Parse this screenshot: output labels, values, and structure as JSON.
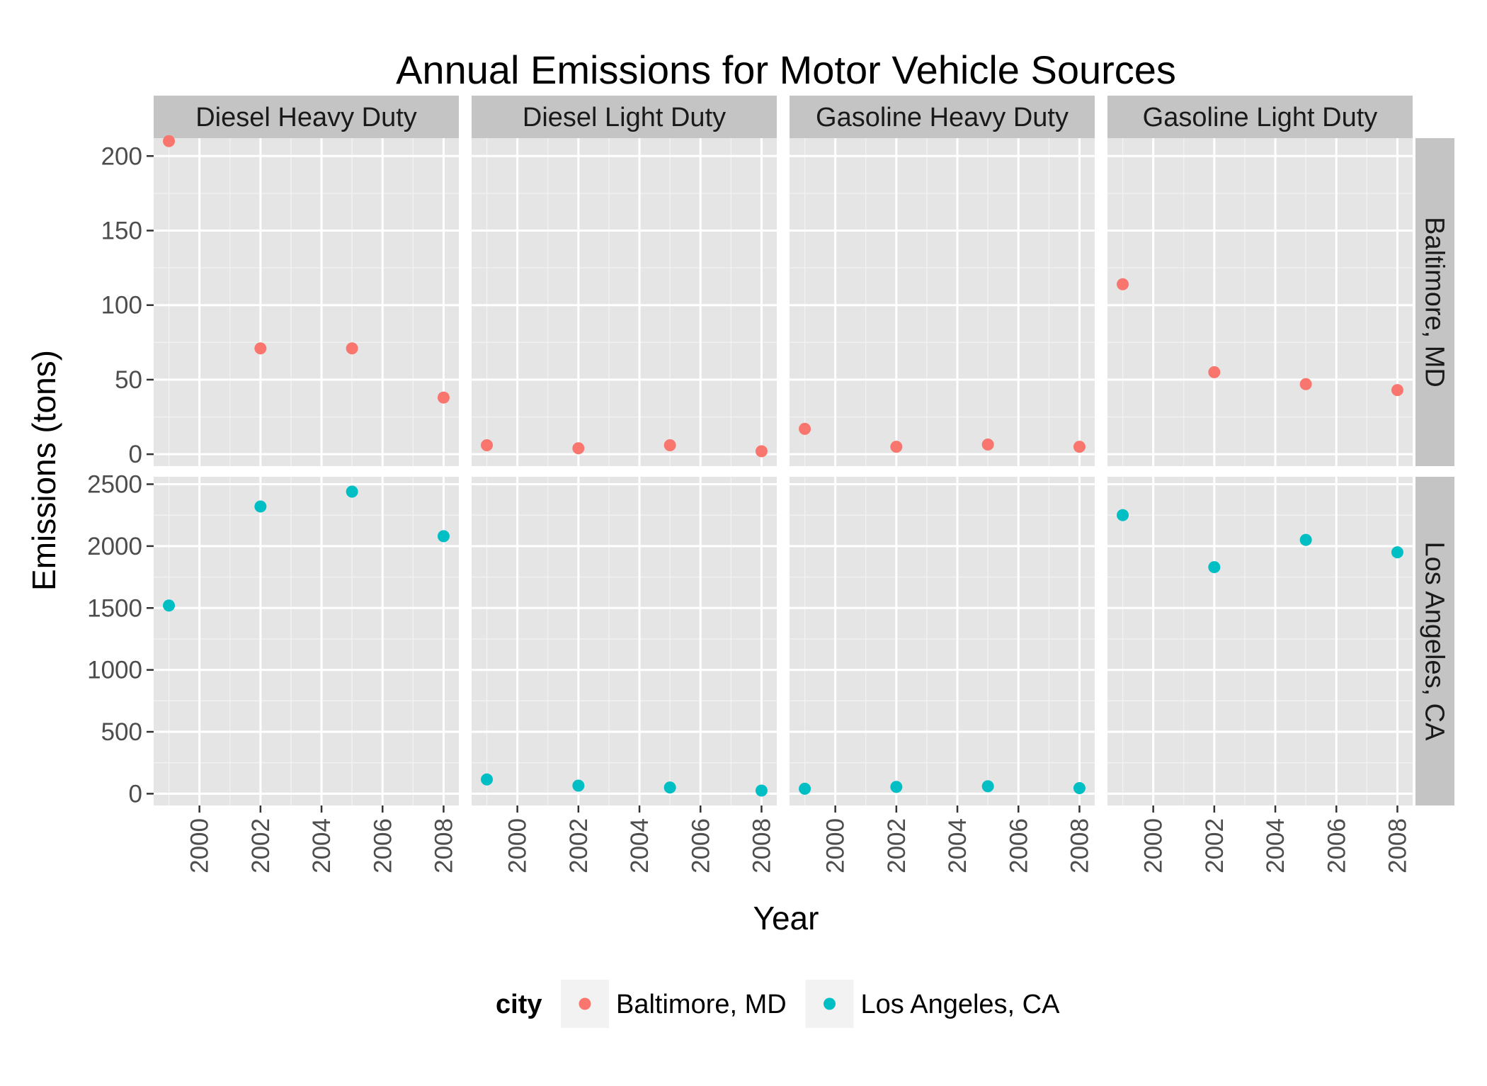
{
  "chart_data": {
    "type": "scatter",
    "title": "Annual Emissions for Motor Vehicle Sources",
    "xlabel": "Year",
    "ylabel": "Emissions (tons)",
    "x_ticks": [
      2000,
      2002,
      2004,
      2006,
      2008
    ],
    "xlim": [
      1998.5,
      2008.5
    ],
    "facet_columns": [
      "Diesel Heavy Duty",
      "Diesel Light Duty",
      "Gasoline Heavy Duty",
      "Gasoline Light Duty"
    ],
    "facet_rows": [
      {
        "label": "Baltimore, MD",
        "ylim": [
          -8,
          212
        ],
        "y_ticks": [
          0,
          50,
          100,
          150,
          200
        ]
      },
      {
        "label": "Los Angeles, CA",
        "ylim": [
          -95,
          2560
        ],
        "y_ticks": [
          0,
          500,
          1000,
          1500,
          2000,
          2500
        ]
      }
    ],
    "legend": {
      "title": "city",
      "position": "bottom",
      "entries": [
        {
          "label": "Baltimore, MD",
          "color": "#F8766D"
        },
        {
          "label": "Los Angeles, CA",
          "color": "#00BFC4"
        }
      ]
    },
    "x": [
      1999,
      2002,
      2005,
      2008
    ],
    "series": [
      {
        "name": "Baltimore, MD",
        "row": 0,
        "color": "#F8766D",
        "panels": [
          {
            "column": "Diesel Heavy Duty",
            "values": [
              210,
              71,
              71,
              38
            ]
          },
          {
            "column": "Diesel Light Duty",
            "values": [
              6,
              4,
              6,
              2
            ]
          },
          {
            "column": "Gasoline Heavy Duty",
            "values": [
              17,
              5,
              6.5,
              5
            ]
          },
          {
            "column": "Gasoline Light Duty",
            "values": [
              114,
              55,
              47,
              43
            ]
          }
        ]
      },
      {
        "name": "Los Angeles, CA",
        "row": 1,
        "color": "#00BFC4",
        "panels": [
          {
            "column": "Diesel Heavy Duty",
            "values": [
              1520,
              2320,
              2440,
              2080
            ]
          },
          {
            "column": "Diesel Light Duty",
            "values": [
              115,
              65,
              50,
              25
            ]
          },
          {
            "column": "Gasoline Heavy Duty",
            "values": [
              40,
              55,
              60,
              45
            ]
          },
          {
            "column": "Gasoline Light Duty",
            "values": [
              2250,
              1830,
              2050,
              1950
            ]
          }
        ]
      }
    ],
    "grid": true
  }
}
